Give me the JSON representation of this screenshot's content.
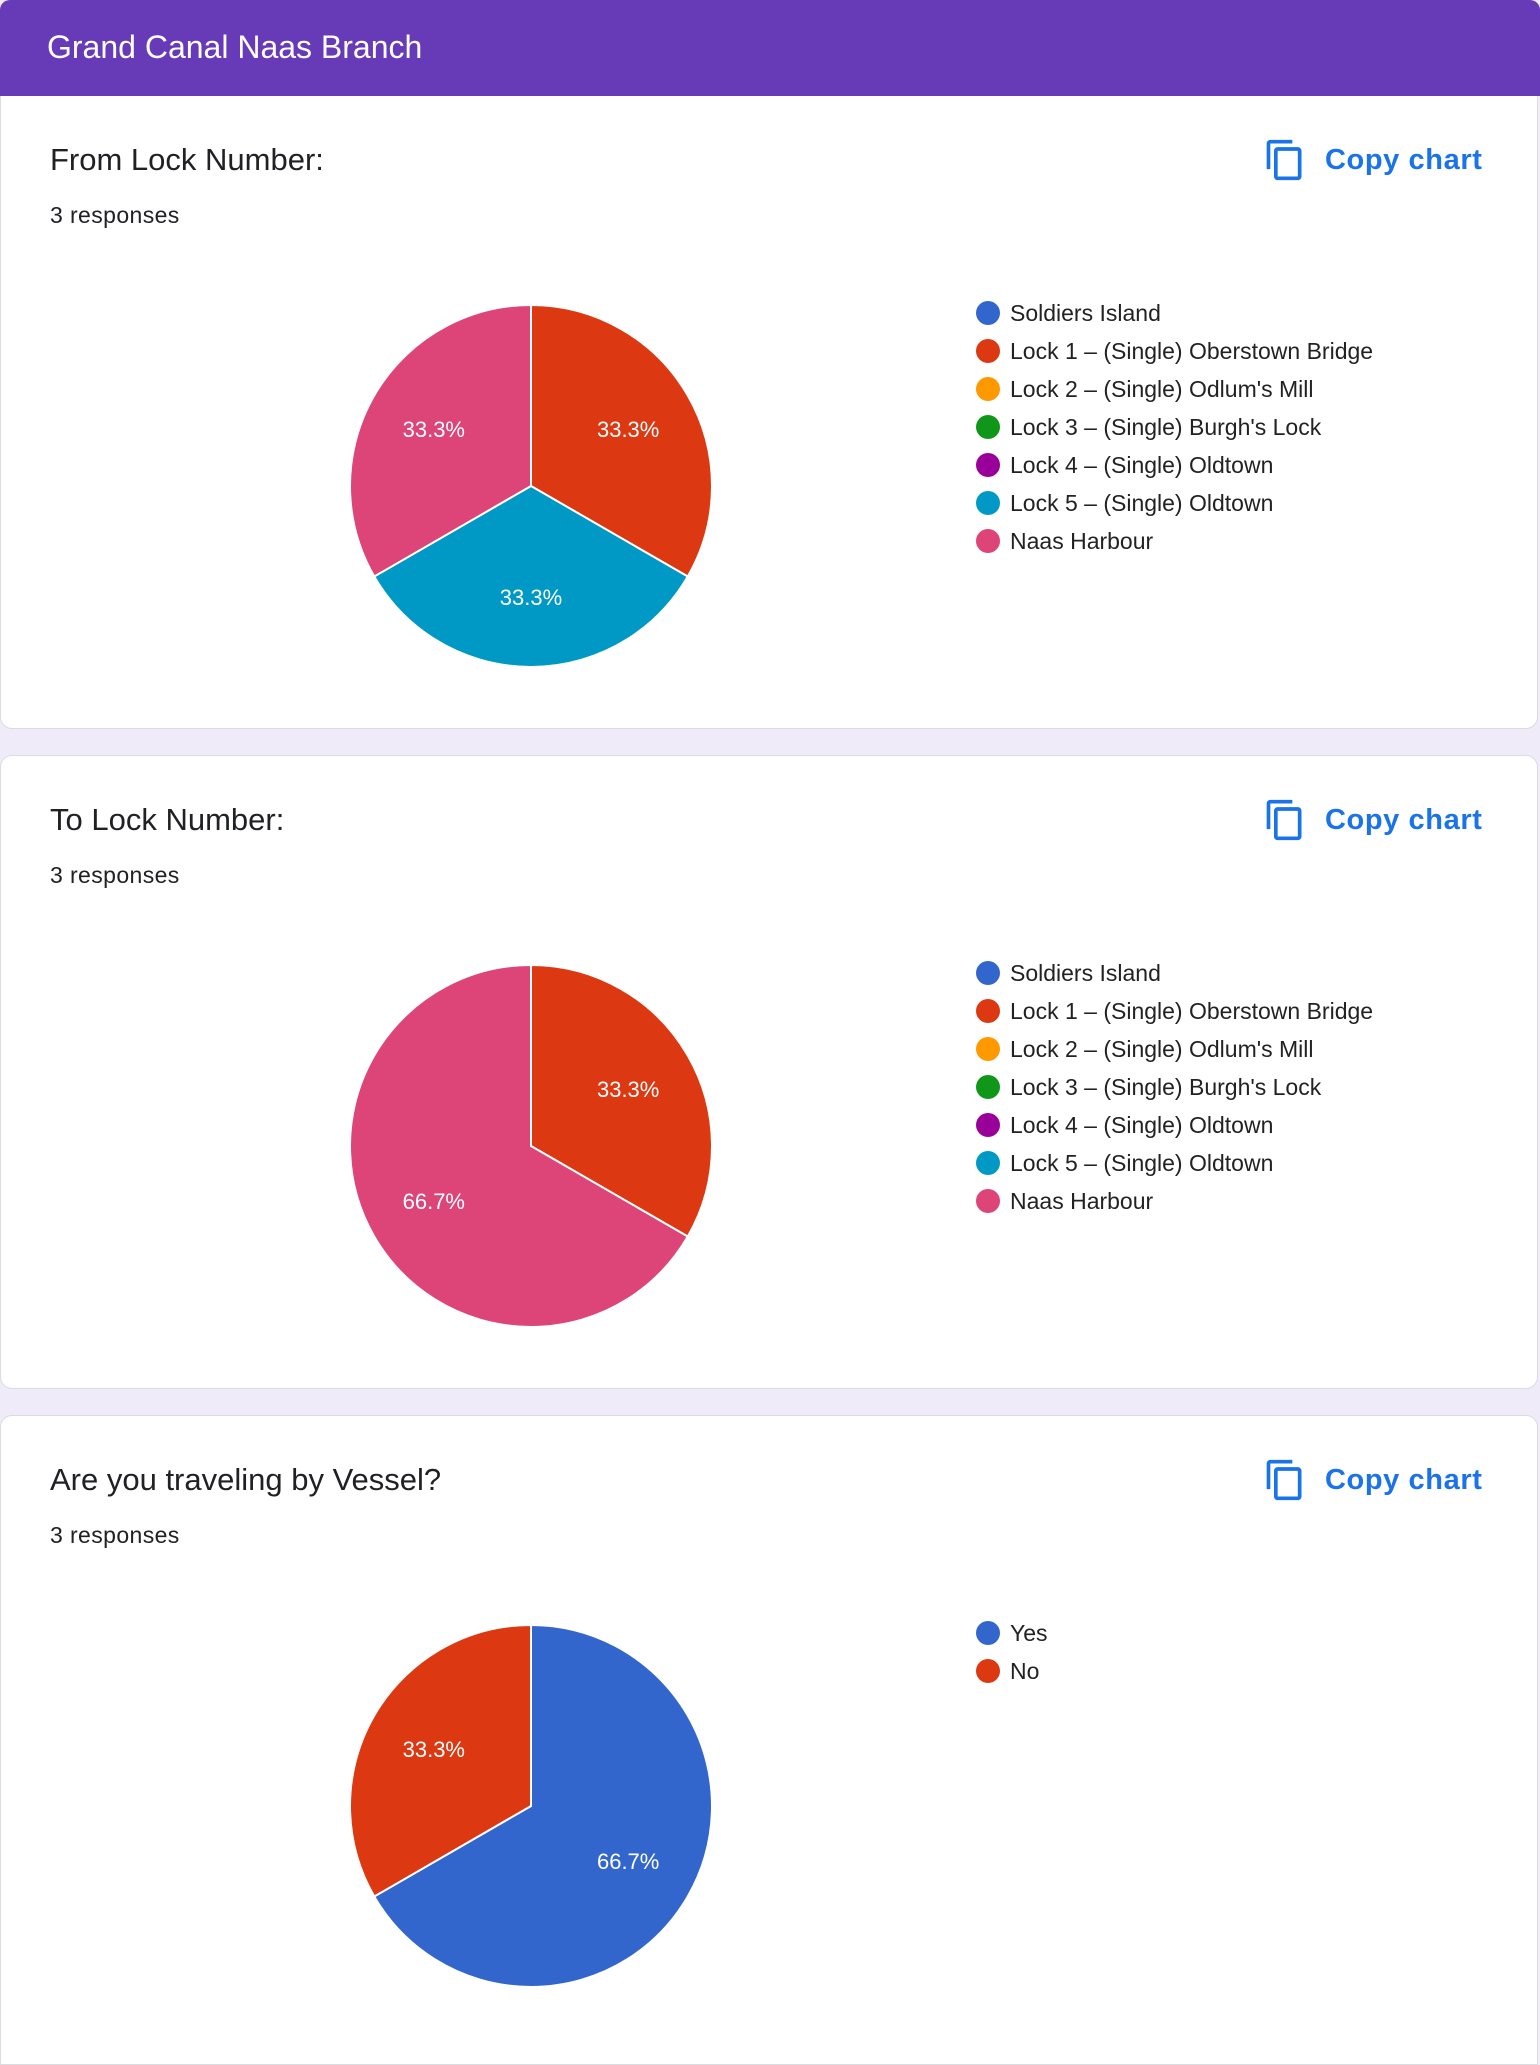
{
  "header": {
    "title": "Grand Canal Naas Branch"
  },
  "copy_chart_label": "Copy chart",
  "questions": [
    {
      "title": "From Lock Number:",
      "responses": "3 responses",
      "legend": [
        {
          "label": "Soldiers Island",
          "color": "#3366cc"
        },
        {
          "label": "Lock 1 – (Single) Oberstown Bridge",
          "color": "#dc3912"
        },
        {
          "label": "Lock 2 – (Single) Odlum's Mill",
          "color": "#ff9900"
        },
        {
          "label": "Lock 3 – (Single) Burgh's Lock",
          "color": "#109618"
        },
        {
          "label": "Lock 4 – (Single) Oldtown",
          "color": "#990099"
        },
        {
          "label": "Lock 5 – (Single) Oldtown",
          "color": "#0099c6"
        },
        {
          "label": "Naas Harbour",
          "color": "#dd4477"
        }
      ]
    },
    {
      "title": "To Lock Number:",
      "responses": "3 responses",
      "legend": [
        {
          "label": "Soldiers Island",
          "color": "#3366cc"
        },
        {
          "label": "Lock 1 – (Single) Oberstown Bridge",
          "color": "#dc3912"
        },
        {
          "label": "Lock 2 – (Single) Odlum's Mill",
          "color": "#ff9900"
        },
        {
          "label": "Lock 3 – (Single) Burgh's Lock",
          "color": "#109618"
        },
        {
          "label": "Lock 4 – (Single) Oldtown",
          "color": "#990099"
        },
        {
          "label": "Lock 5 – (Single) Oldtown",
          "color": "#0099c6"
        },
        {
          "label": "Naas Harbour",
          "color": "#dd4477"
        }
      ]
    },
    {
      "title": "Are you traveling by Vessel?",
      "responses": "3 responses",
      "legend": [
        {
          "label": "Yes",
          "color": "#3366cc"
        },
        {
          "label": "No",
          "color": "#dc3912"
        }
      ]
    }
  ],
  "chart_data": [
    {
      "type": "pie",
      "title": "From Lock Number:",
      "categories": [
        "Soldiers Island",
        "Lock 1 – (Single) Oberstown Bridge",
        "Lock 2 – (Single) Odlum's Mill",
        "Lock 3 – (Single) Burgh's Lock",
        "Lock 4 – (Single) Oldtown",
        "Lock 5 – (Single) Oldtown",
        "Naas Harbour"
      ],
      "values": [
        0,
        1,
        0,
        0,
        0,
        1,
        1
      ],
      "slice_labels": [
        "",
        "33.3%",
        "",
        "",
        "",
        "33.3%",
        "33.3%"
      ],
      "colors": [
        "#3366cc",
        "#dc3912",
        "#ff9900",
        "#109618",
        "#990099",
        "#0099c6",
        "#dd4477"
      ],
      "legend_position": "right"
    },
    {
      "type": "pie",
      "title": "To Lock Number:",
      "categories": [
        "Soldiers Island",
        "Lock 1 – (Single) Oberstown Bridge",
        "Lock 2 – (Single) Odlum's Mill",
        "Lock 3 – (Single) Burgh's Lock",
        "Lock 4 – (Single) Oldtown",
        "Lock 5 – (Single) Oldtown",
        "Naas Harbour"
      ],
      "values": [
        0,
        1,
        0,
        0,
        0,
        0,
        2
      ],
      "slice_labels": [
        "",
        "33.3%",
        "",
        "",
        "",
        "",
        "66.7%"
      ],
      "colors": [
        "#3366cc",
        "#dc3912",
        "#ff9900",
        "#109618",
        "#990099",
        "#0099c6",
        "#dd4477"
      ],
      "legend_position": "right"
    },
    {
      "type": "pie",
      "title": "Are you traveling by Vessel?",
      "categories": [
        "Yes",
        "No"
      ],
      "values": [
        2,
        1
      ],
      "slice_labels": [
        "66.7%",
        "33.3%"
      ],
      "colors": [
        "#3366cc",
        "#dc3912"
      ],
      "legend_position": "right"
    }
  ]
}
